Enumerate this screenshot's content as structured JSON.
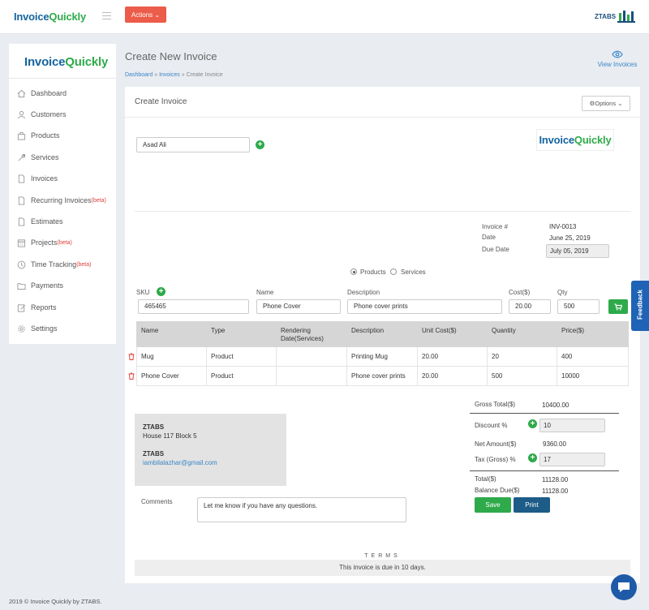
{
  "topbar": {
    "logo_part1": "Invoice",
    "logo_part2": "Quickly",
    "actions_label": "Actions",
    "brand": "ZTABS"
  },
  "sidebar": {
    "logo_part1": "Invoice",
    "logo_part2": "Quickly",
    "items": [
      {
        "label": "Dashboard",
        "icon": "home-icon"
      },
      {
        "label": "Customers",
        "icon": "user-icon"
      },
      {
        "label": "Products",
        "icon": "bag-icon"
      },
      {
        "label": "Services",
        "icon": "wrench-icon"
      },
      {
        "label": "Invoices",
        "icon": "document-icon"
      },
      {
        "label": "Recurring Invoices",
        "beta": "(beta)",
        "icon": "document-icon"
      },
      {
        "label": "Estimates",
        "icon": "document-icon"
      },
      {
        "label": "Projects",
        "beta": "(beta)",
        "icon": "calendar-icon"
      },
      {
        "label": "Time Tracking",
        "beta": "(beta)",
        "icon": "clock-icon"
      },
      {
        "label": "Payments",
        "icon": "folder-icon"
      },
      {
        "label": "Reports",
        "icon": "edit-icon"
      },
      {
        "label": "Settings",
        "icon": "gear-icon"
      }
    ]
  },
  "header": {
    "title": "Create New Invoice",
    "breadcrumb": [
      "Dashboard",
      "Invoices",
      "Create Invoice"
    ],
    "breadcrumb_sep": "»",
    "view_invoices": "View Invoices"
  },
  "card": {
    "title": "Create Invoice",
    "options_label": "Options",
    "customer": "Asad Ali",
    "logo_part1": "Invoice",
    "logo_part2": "Quickly"
  },
  "meta": {
    "invoice_label": "Invoice #",
    "invoice_value": "INV-0013",
    "date_label": "Date",
    "date_value": "June 25, 2019",
    "due_label": "Due Date",
    "due_value": "July 05, 2019"
  },
  "item_type": {
    "products": "Products",
    "services": "Services",
    "selected": "Products"
  },
  "entry": {
    "sku_label": "SKU",
    "sku": "465465",
    "name_label": "Name",
    "name": "Phone Cover",
    "desc_label": "Description",
    "desc": "Phone cover prints",
    "cost_label": "Cost($)",
    "cost": "20.00",
    "qty_label": "Qty",
    "qty": "500"
  },
  "table": {
    "headers": [
      "Name",
      "Type",
      "Rendering Date(Services)",
      "Description",
      "Unit Cost($)",
      "Quantity",
      "Price($)"
    ],
    "rows": [
      [
        "Mug",
        "Product",
        "",
        "Printing Mug",
        "20.00",
        "20",
        "400"
      ],
      [
        "Phone Cover",
        "Product",
        "",
        "Phone cover prints",
        "20.00",
        "500",
        "10000"
      ]
    ]
  },
  "address": {
    "company": "ZTABS",
    "street": "House 117 Block 5",
    "company2": "ZTABS",
    "email": "iambilalazhar@gmail.com"
  },
  "comments": {
    "label": "Comments",
    "value": "Let me know if you have any questions."
  },
  "summary": {
    "gross_label": "Gross Total($)",
    "gross": "10400.00",
    "discount_label": "Discount %",
    "discount": "10",
    "net_label": "Net Amount($)",
    "net": "9360.00",
    "tax_label": "Tax (Gross) %",
    "tax": "17",
    "total_label": "Total($)",
    "total": "11128.00",
    "balance_label": "Balance Due($)",
    "balance": "11128.00"
  },
  "buttons": {
    "save": "Save",
    "print": "Print"
  },
  "terms": {
    "title": "TERMS",
    "text": "This invoice is due in 10 days."
  },
  "feedback": "Feedback",
  "footer": "2019 © Invoice Quickly by ZTABS.",
  "colors": {
    "accent_green": "#2eaa4a",
    "actions_red": "#ec5c4a",
    "link_blue": "#3a86c8",
    "print_navy": "#1d5c87"
  }
}
